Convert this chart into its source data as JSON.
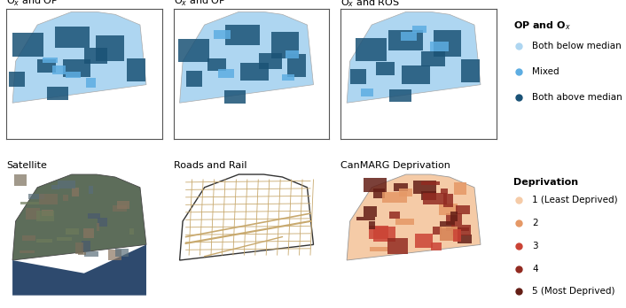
{
  "title_row1": [
    "Oₓ and OPᴬᴬ",
    "Oₓ and OPᴳˢᴴ",
    "Oₓ and ROS"
  ],
  "title_row2": [
    "Satellite",
    "Roads and Rail",
    "CanMARG Deprivation"
  ],
  "legend1_title": "OP and Oₓ",
  "legend1_items": [
    "Both below median",
    "Mixed",
    "Both above median"
  ],
  "legend1_colors": [
    "#aed6f1",
    "#5dade2",
    "#1a5276"
  ],
  "legend2_title": "Deprivation",
  "legend2_items": [
    "1 (Least Deprived)",
    "2",
    "3",
    "4",
    "5 (Most Deprived)"
  ],
  "legend2_colors": [
    "#f5cba7",
    "#e59866",
    "#cb4335",
    "#922b21",
    "#641e16"
  ],
  "bg_color": "#ffffff",
  "map_border_color": "#555555",
  "map_border_lw": 0.8,
  "title_fontsize": 8,
  "legend_fontsize": 7.5,
  "road_color": "#c8a96e",
  "road_border_color": "#333333"
}
